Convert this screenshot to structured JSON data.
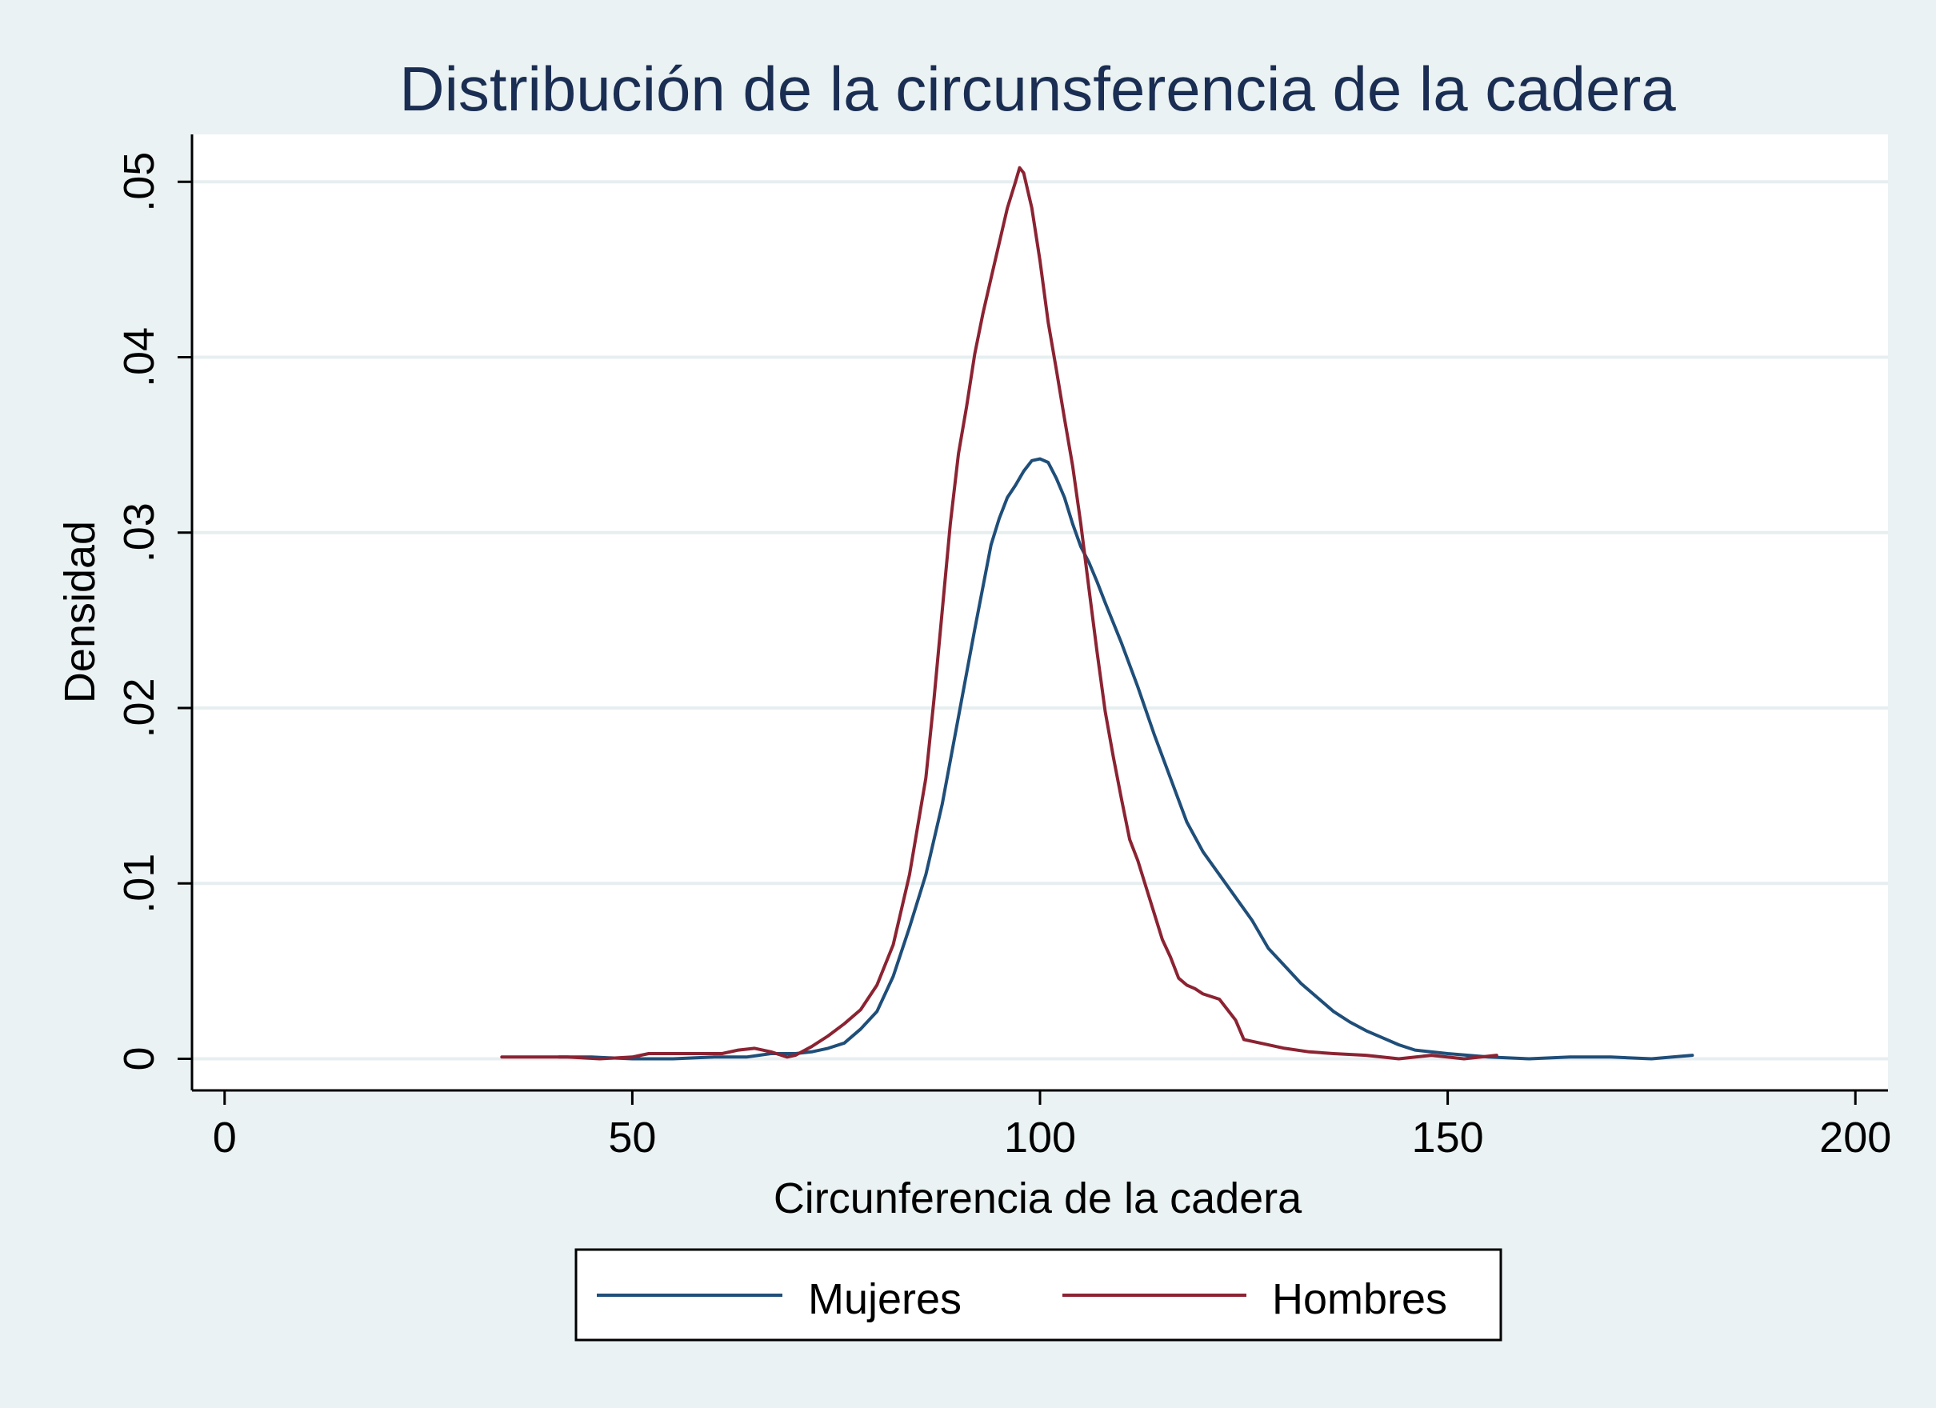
{
  "chart_data": {
    "type": "line",
    "title": "Distribución de la circunsferencia de la cadera",
    "xlabel": "Circunferencia de la cadera",
    "ylabel": "Densidad",
    "xlim": [
      -4,
      204
    ],
    "ylim": [
      -0.0018,
      0.0527
    ],
    "x_ticks": [
      0,
      50,
      100,
      150,
      200
    ],
    "x_tick_labels": [
      "0",
      "50",
      "100",
      "150",
      "200"
    ],
    "y_ticks": [
      0,
      0.01,
      0.02,
      0.03,
      0.04,
      0.05
    ],
    "y_tick_labels": [
      "0",
      ".01",
      ".02",
      ".03",
      ".04",
      ".05"
    ],
    "grid": true,
    "legend_position": "bottom",
    "series": [
      {
        "name": "Mujeres",
        "color": "#1f4e79",
        "points": [
          [
            41,
            0.0001
          ],
          [
            45,
            0.0001
          ],
          [
            50,
            0.0
          ],
          [
            55,
            0.0
          ],
          [
            60,
            0.0001
          ],
          [
            64,
            0.0001
          ],
          [
            67,
            0.0003
          ],
          [
            70,
            0.0003
          ],
          [
            72,
            0.0004
          ],
          [
            74,
            0.0006
          ],
          [
            76,
            0.0009
          ],
          [
            78,
            0.0017
          ],
          [
            80,
            0.0027
          ],
          [
            82,
            0.0047
          ],
          [
            84,
            0.0075
          ],
          [
            86,
            0.0105
          ],
          [
            88,
            0.0145
          ],
          [
            90,
            0.0195
          ],
          [
            92,
            0.0245
          ],
          [
            94,
            0.0293
          ],
          [
            95,
            0.0308
          ],
          [
            96,
            0.032
          ],
          [
            97,
            0.0327
          ],
          [
            98,
            0.0335
          ],
          [
            99,
            0.0341
          ],
          [
            100,
            0.0342
          ],
          [
            101,
            0.034
          ],
          [
            102,
            0.0331
          ],
          [
            103,
            0.032
          ],
          [
            104,
            0.0305
          ],
          [
            105,
            0.0292
          ],
          [
            106,
            0.0283
          ],
          [
            107,
            0.0272
          ],
          [
            108,
            0.026
          ],
          [
            110,
            0.0237
          ],
          [
            112,
            0.0212
          ],
          [
            114,
            0.0185
          ],
          [
            116,
            0.016
          ],
          [
            118,
            0.0135
          ],
          [
            120,
            0.0118
          ],
          [
            122,
            0.0105
          ],
          [
            124,
            0.0092
          ],
          [
            126,
            0.0079
          ],
          [
            128,
            0.0063
          ],
          [
            130,
            0.0053
          ],
          [
            132,
            0.0043
          ],
          [
            134,
            0.0035
          ],
          [
            136,
            0.0027
          ],
          [
            138,
            0.0021
          ],
          [
            140,
            0.0016
          ],
          [
            142,
            0.0012
          ],
          [
            144,
            0.0008
          ],
          [
            146,
            0.0005
          ],
          [
            150,
            0.0003
          ],
          [
            155,
            0.0001
          ],
          [
            160,
            0.0
          ],
          [
            165,
            0.0001
          ],
          [
            170,
            0.0001
          ],
          [
            175,
            0.0
          ],
          [
            180,
            0.0002
          ]
        ]
      },
      {
        "name": "Hombres",
        "color": "#8b2332",
        "points": [
          [
            34,
            0.0001
          ],
          [
            38,
            0.0001
          ],
          [
            42,
            0.0001
          ],
          [
            46,
            0.0
          ],
          [
            50,
            0.0001
          ],
          [
            52,
            0.0003
          ],
          [
            55,
            0.0003
          ],
          [
            58,
            0.0003
          ],
          [
            61,
            0.0003
          ],
          [
            63,
            0.0005
          ],
          [
            65,
            0.0006
          ],
          [
            67,
            0.0004
          ],
          [
            69,
            0.0001
          ],
          [
            70,
            0.0002
          ],
          [
            72,
            0.0007
          ],
          [
            74,
            0.0013
          ],
          [
            76,
            0.002
          ],
          [
            78,
            0.0028
          ],
          [
            80,
            0.0042
          ],
          [
            82,
            0.0065
          ],
          [
            84,
            0.0105
          ],
          [
            86,
            0.016
          ],
          [
            87,
            0.0205
          ],
          [
            88,
            0.0255
          ],
          [
            89,
            0.0305
          ],
          [
            90,
            0.0345
          ],
          [
            91,
            0.0372
          ],
          [
            92,
            0.0402
          ],
          [
            93,
            0.0425
          ],
          [
            94,
            0.0445
          ],
          [
            95,
            0.0465
          ],
          [
            96,
            0.0485
          ],
          [
            97,
            0.05
          ],
          [
            97.5,
            0.0508
          ],
          [
            98,
            0.0505
          ],
          [
            99,
            0.0485
          ],
          [
            100,
            0.0455
          ],
          [
            101,
            0.042
          ],
          [
            102,
            0.0393
          ],
          [
            103,
            0.0365
          ],
          [
            104,
            0.0338
          ],
          [
            105,
            0.0305
          ],
          [
            106,
            0.0268
          ],
          [
            107,
            0.0232
          ],
          [
            108,
            0.0198
          ],
          [
            109,
            0.0172
          ],
          [
            110,
            0.0148
          ],
          [
            111,
            0.0125
          ],
          [
            112,
            0.0113
          ],
          [
            113,
            0.0098
          ],
          [
            114,
            0.0083
          ],
          [
            115,
            0.0068
          ],
          [
            116,
            0.0058
          ],
          [
            117,
            0.0046
          ],
          [
            118,
            0.0042
          ],
          [
            119,
            0.004
          ],
          [
            120,
            0.0037
          ],
          [
            122,
            0.0034
          ],
          [
            124,
            0.0022
          ],
          [
            125,
            0.0011
          ],
          [
            127,
            0.0009
          ],
          [
            130,
            0.0006
          ],
          [
            133,
            0.0004
          ],
          [
            136,
            0.0003
          ],
          [
            140,
            0.0002
          ],
          [
            144,
            0.0
          ],
          [
            148,
            0.0002
          ],
          [
            152,
            0.0
          ],
          [
            156,
            0.0002
          ]
        ]
      }
    ]
  }
}
